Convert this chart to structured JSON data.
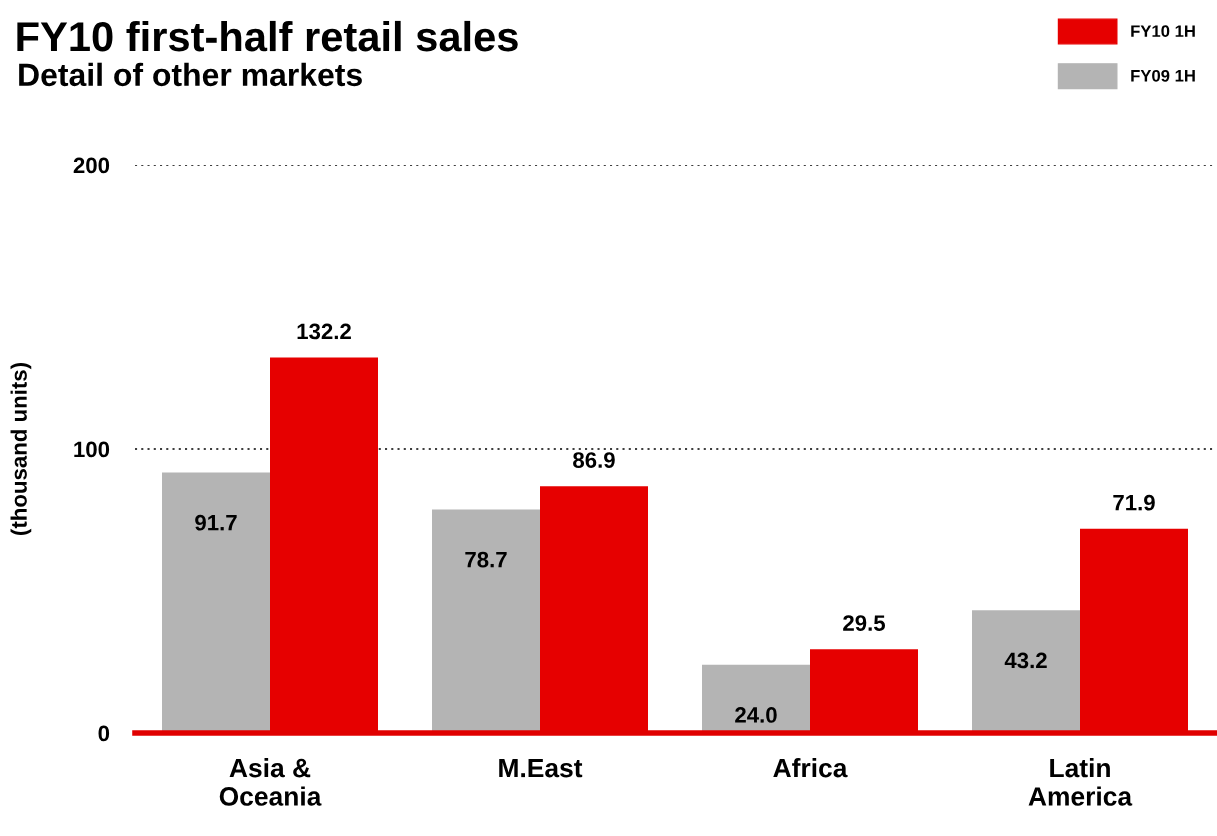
{
  "chart_data": {
    "type": "bar",
    "title": "FY10 first-half retail sales",
    "subtitle": "Detail of other markets",
    "ylabel": "(thousand units)",
    "categories": [
      "Asia &\nOceania",
      "M.East",
      "Africa",
      "Latin\nAmerica"
    ],
    "series": [
      {
        "name": "FY09 1H",
        "color": "#b4b4b4",
        "values": [
          91.7,
          78.7,
          24.0,
          43.2
        ],
        "value_labels": [
          "91.7",
          "78.7",
          "24.0",
          "43.2"
        ]
      },
      {
        "name": "FY10 1H",
        "color": "#e60000",
        "values": [
          132.2,
          86.9,
          29.5,
          71.9
        ],
        "value_labels": [
          "132.2",
          "86.9",
          "29.5",
          "71.9"
        ]
      }
    ],
    "ylim": [
      0,
      200
    ],
    "yticks": [
      0,
      100,
      200
    ],
    "grid": "y",
    "legend": "top right"
  }
}
